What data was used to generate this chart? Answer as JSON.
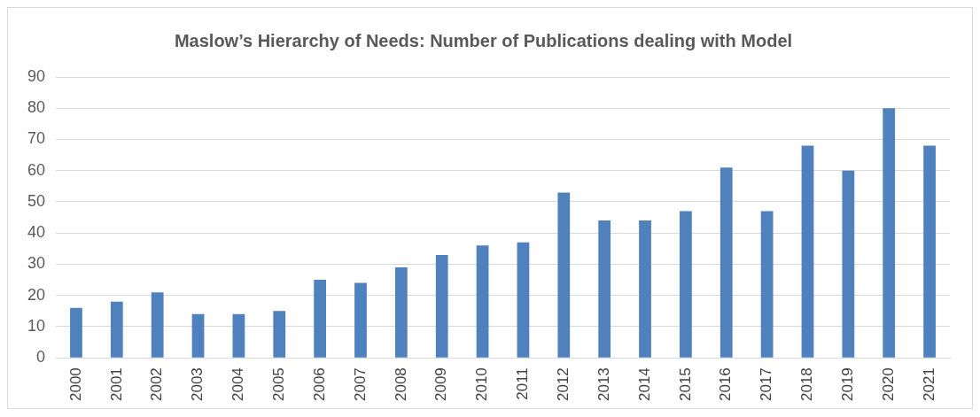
{
  "chart_data": {
    "type": "bar",
    "title": "Maslow’s Hierarchy of Needs: Number of Publications dealing with Model",
    "categories": [
      "2000",
      "2001",
      "2002",
      "2003",
      "2004",
      "2005",
      "2006",
      "2007",
      "2008",
      "2009",
      "2010",
      "2011",
      "2012",
      "2013",
      "2014",
      "2015",
      "2016",
      "2017",
      "2018",
      "2019",
      "2020",
      "2021"
    ],
    "values": [
      16,
      18,
      21,
      14,
      14,
      15,
      25,
      24,
      29,
      33,
      36,
      37,
      53,
      44,
      44,
      47,
      61,
      47,
      68,
      60,
      80,
      68
    ],
    "color": "#4f81bd",
    "ylim": [
      0,
      90
    ],
    "yticks": [
      0,
      10,
      20,
      30,
      40,
      50,
      60,
      70,
      80,
      90
    ],
    "grid": "y",
    "legend": false
  }
}
